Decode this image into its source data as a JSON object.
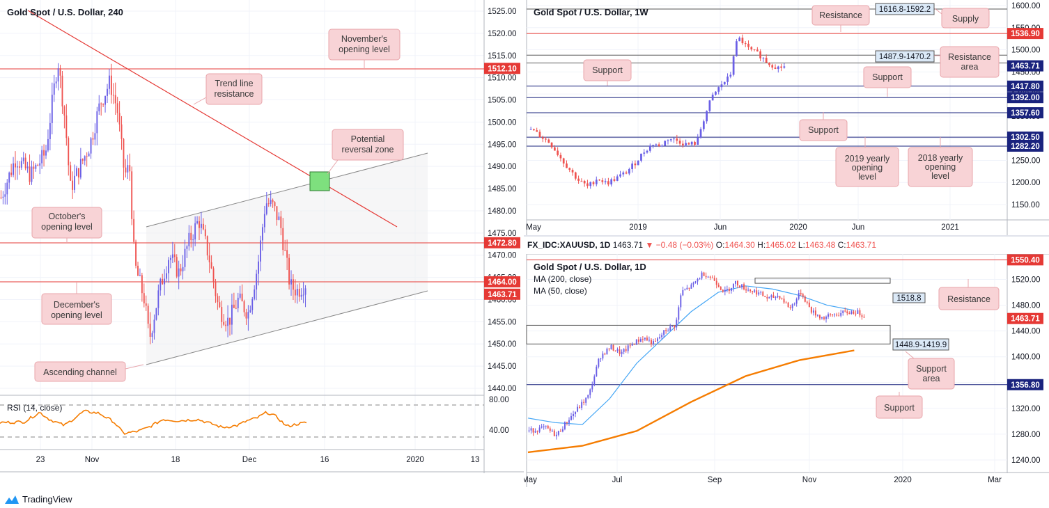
{
  "brand": "TradingView",
  "colors": {
    "bull": "#6a5fe6",
    "bear": "#ef5350",
    "red_line": "#e53935",
    "blue_line": "#1a237e",
    "rsi": "#f57c00",
    "ma200": "#f57c00",
    "ma50": "#42a5f5",
    "callout_bg": "#f8d3d6",
    "callout_border": "#e8a5ab",
    "green_zone": "#7ee07e"
  },
  "left_chart": {
    "title": "Gold Spot / U.S. Dollar, 240",
    "y_ticks": [
      "1525.00",
      "1520.00",
      "1515.00",
      "1510.00",
      "1505.00",
      "1500.00",
      "1495.00",
      "1490.00",
      "1485.00",
      "1480.00",
      "1475.00",
      "1470.00",
      "1465.00",
      "1460.00",
      "1455.00",
      "1450.00",
      "1445.00",
      "1440.00"
    ],
    "x_ticks": [
      "23",
      "Nov",
      "18",
      "Dec",
      "16",
      "2020",
      "13"
    ],
    "price_tags": [
      {
        "label": "1512.10",
        "bg": "#e53935"
      },
      {
        "label": "1472.80",
        "bg": "#e53935"
      },
      {
        "label": "1464.00",
        "bg": "#e53935"
      },
      {
        "label": "1463.71",
        "bg": "#e53935"
      }
    ],
    "callouts": [
      "November's opening level",
      "Trend line resistance",
      "Potential reversal zone",
      "October's opening level",
      "December's opening level",
      "Ascending channel"
    ],
    "rsi": {
      "title": "RSI (14, close)",
      "ticks": [
        "80.00",
        "40.00"
      ]
    }
  },
  "weekly_chart": {
    "title": "Gold Spot / U.S. Dollar, 1W",
    "y_ticks": [
      "1600.00",
      "1550.00",
      "1500.00",
      "1450.00",
      "1400.00",
      "1350.00",
      "1300.00",
      "1250.00",
      "1200.00",
      "1150.00"
    ],
    "x_ticks": [
      "May",
      "2019",
      "Jun",
      "2020",
      "Jun",
      "2021"
    ],
    "price_tags": [
      {
        "label": "1536.90",
        "bg": "#e53935"
      },
      {
        "label": "1463.71",
        "bg": "#1a237e"
      },
      {
        "label": "1417.80",
        "bg": "#1a237e"
      },
      {
        "label": "1392.00",
        "bg": "#1a237e"
      },
      {
        "label": "1357.60",
        "bg": "#1a237e"
      },
      {
        "label": "1302.50",
        "bg": "#1a237e"
      },
      {
        "label": "1282.20",
        "bg": "#1a237e"
      }
    ],
    "zone_labels": [
      "1616.8-1592.2",
      "1487.9-1470.2"
    ],
    "callouts": [
      "Resistance",
      "Supply",
      "Resistance area",
      "Support",
      "Support",
      "Support",
      "2019 yearly opening level",
      "2018 yearly opening level"
    ]
  },
  "daily_info": {
    "symbol": "FX_IDC:XAUUSD, 1D",
    "last": "1463.71",
    "change": "−0.48 (−0.03%)",
    "o_label": "O:",
    "o": "1464.30",
    "h_label": "H:",
    "h": "1465.02",
    "l_label": "L:",
    "l": "1463.48",
    "c_label": "C:",
    "c": "1463.71"
  },
  "daily_chart": {
    "title": "Gold Spot / U.S. Dollar, 1D",
    "ma200": "MA (200, close)",
    "ma50": "MA (50, close)",
    "y_ticks": [
      "1520.00",
      "1480.00",
      "1440.00",
      "1400.00",
      "1360.00",
      "1320.00",
      "1280.00",
      "1240.00"
    ],
    "x_ticks": [
      "May",
      "Jul",
      "Sep",
      "Nov",
      "2020",
      "Mar"
    ],
    "price_tags": [
      {
        "label": "1550.40",
        "bg": "#e53935"
      },
      {
        "label": "1463.71",
        "bg": "#e53935"
      },
      {
        "label": "1356.80",
        "bg": "#1a237e"
      }
    ],
    "zone_labels": [
      "1518.8",
      "1448.9-1419.9"
    ],
    "callouts": [
      "Resistance",
      "Support area",
      "Support"
    ]
  },
  "chart_data": [
    {
      "type": "candlestick",
      "title": "Gold Spot / U.S. Dollar, 240",
      "ylim": [
        1437,
        1528
      ],
      "horizontal_levels": [
        1512.1,
        1472.8,
        1464.0
      ],
      "trend_line": [
        [
          0,
          1530
        ],
        [
          0.8,
          1474.5
        ]
      ],
      "channel_upper": [
        [
          0.3,
          1476.5
        ],
        [
          0.88,
          1493
        ]
      ],
      "channel_lower": [
        [
          0.3,
          1445.5
        ],
        [
          0.88,
          1462
        ]
      ],
      "reversal_zone": [
        1484.5,
        1490
      ],
      "close_path": [
        [
          0,
          1483
        ],
        [
          0.03,
          1492
        ],
        [
          0.06,
          1488
        ],
        [
          0.09,
          1493
        ],
        [
          0.115,
          1514
        ],
        [
          0.13,
          1500
        ],
        [
          0.14,
          1485
        ],
        [
          0.16,
          1490
        ],
        [
          0.18,
          1495
        ],
        [
          0.2,
          1504
        ],
        [
          0.22,
          1509
        ],
        [
          0.235,
          1503
        ],
        [
          0.25,
          1488
        ],
        [
          0.26,
          1490
        ],
        [
          0.27,
          1468
        ],
        [
          0.29,
          1460
        ],
        [
          0.3,
          1451
        ],
        [
          0.32,
          1462
        ],
        [
          0.34,
          1470
        ],
        [
          0.36,
          1466
        ],
        [
          0.38,
          1473
        ],
        [
          0.4,
          1478
        ],
        [
          0.42,
          1470
        ],
        [
          0.44,
          1458
        ],
        [
          0.46,
          1455
        ],
        [
          0.48,
          1460
        ],
        [
          0.5,
          1457
        ],
        [
          0.52,
          1468
        ],
        [
          0.535,
          1482
        ],
        [
          0.55,
          1481
        ],
        [
          0.565,
          1477
        ],
        [
          0.585,
          1463
        ],
        [
          0.6,
          1462
        ],
        [
          0.62,
          1464
        ]
      ],
      "rsi_path": [
        [
          0,
          48
        ],
        [
          0.05,
          50
        ],
        [
          0.08,
          70
        ],
        [
          0.1,
          55
        ],
        [
          0.13,
          42
        ],
        [
          0.17,
          72
        ],
        [
          0.2,
          68
        ],
        [
          0.23,
          50
        ],
        [
          0.25,
          25
        ],
        [
          0.28,
          30
        ],
        [
          0.3,
          38
        ],
        [
          0.33,
          55
        ],
        [
          0.36,
          52
        ],
        [
          0.4,
          55
        ],
        [
          0.45,
          38
        ],
        [
          0.48,
          42
        ],
        [
          0.5,
          52
        ],
        [
          0.52,
          58
        ],
        [
          0.54,
          70
        ],
        [
          0.56,
          60
        ],
        [
          0.58,
          40
        ],
        [
          0.6,
          45
        ],
        [
          0.62,
          48
        ]
      ],
      "rsi_levels": [
        70,
        30
      ]
    },
    {
      "type": "candlestick",
      "title": "Gold Spot / U.S. Dollar, 1W",
      "ylim": [
        1105,
        1605
      ],
      "horizontal_levels": [
        1616.8,
        1592.2,
        1536.9,
        1487.9,
        1470.2,
        1417.8,
        1392.0,
        1357.6,
        1302.5,
        1282.2
      ],
      "close_path": [
        [
          0,
          1320
        ],
        [
          0.04,
          1290
        ],
        [
          0.07,
          1245
        ],
        [
          0.1,
          1205
        ],
        [
          0.12,
          1190
        ],
        [
          0.14,
          1210
        ],
        [
          0.16,
          1198
        ],
        [
          0.18,
          1210
        ],
        [
          0.2,
          1222
        ],
        [
          0.22,
          1245
        ],
        [
          0.24,
          1272
        ],
        [
          0.26,
          1290
        ],
        [
          0.27,
          1280
        ],
        [
          0.29,
          1300
        ],
        [
          0.31,
          1294
        ],
        [
          0.33,
          1285
        ],
        [
          0.35,
          1290
        ],
        [
          0.36,
          1330
        ],
        [
          0.38,
          1390
        ],
        [
          0.4,
          1420
        ],
        [
          0.42,
          1440
        ],
        [
          0.43,
          1510
        ],
        [
          0.44,
          1525
        ],
        [
          0.46,
          1500
        ],
        [
          0.48,
          1490
        ],
        [
          0.5,
          1470
        ],
        [
          0.52,
          1460
        ],
        [
          0.54,
          1463
        ]
      ]
    },
    {
      "type": "candlestick",
      "title": "Gold Spot / U.S. Dollar, 1D",
      "ylim": [
        1228,
        1570
      ],
      "horizontal_levels": [
        1550.4,
        1356.8
      ],
      "zones": [
        [
          1514,
          1522
        ],
        [
          1419.9,
          1448.9
        ]
      ],
      "close_path": [
        [
          0,
          1285
        ],
        [
          0.03,
          1290
        ],
        [
          0.05,
          1278
        ],
        [
          0.07,
          1300
        ],
        [
          0.09,
          1320
        ],
        [
          0.11,
          1340
        ],
        [
          0.13,
          1400
        ],
        [
          0.15,
          1415
        ],
        [
          0.17,
          1405
        ],
        [
          0.19,
          1420
        ],
        [
          0.21,
          1430
        ],
        [
          0.23,
          1420
        ],
        [
          0.25,
          1440
        ],
        [
          0.27,
          1450
        ],
        [
          0.28,
          1500
        ],
        [
          0.3,
          1510
        ],
        [
          0.32,
          1530
        ],
        [
          0.34,
          1520
        ],
        [
          0.36,
          1500
        ],
        [
          0.38,
          1515
        ],
        [
          0.4,
          1505
        ],
        [
          0.42,
          1500
        ],
        [
          0.44,
          1490
        ],
        [
          0.46,
          1495
        ],
        [
          0.48,
          1475
        ],
        [
          0.5,
          1500
        ],
        [
          0.52,
          1470
        ],
        [
          0.54,
          1460
        ],
        [
          0.56,
          1465
        ],
        [
          0.58,
          1468
        ],
        [
          0.6,
          1470
        ],
        [
          0.62,
          1463
        ]
      ],
      "ma50_path": [
        [
          0,
          1305
        ],
        [
          0.05,
          1298
        ],
        [
          0.1,
          1295
        ],
        [
          0.15,
          1335
        ],
        [
          0.2,
          1390
        ],
        [
          0.25,
          1430
        ],
        [
          0.3,
          1470
        ],
        [
          0.35,
          1500
        ],
        [
          0.4,
          1510
        ],
        [
          0.45,
          1505
        ],
        [
          0.5,
          1495
        ],
        [
          0.55,
          1480
        ],
        [
          0.6,
          1472
        ]
      ],
      "ma200_path": [
        [
          0,
          1252
        ],
        [
          0.1,
          1262
        ],
        [
          0.2,
          1285
        ],
        [
          0.3,
          1330
        ],
        [
          0.4,
          1370
        ],
        [
          0.5,
          1395
        ],
        [
          0.6,
          1410
        ]
      ]
    }
  ]
}
